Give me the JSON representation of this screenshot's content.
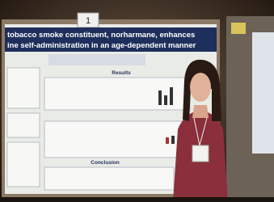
{
  "poster": {
    "number": "1",
    "title_lines": [
      "tobacco smoke constituent, norharmane, enhances",
      "ine self-administration in an age-dependent manner"
    ],
    "sections": [
      "Results",
      "Conclusion"
    ]
  }
}
